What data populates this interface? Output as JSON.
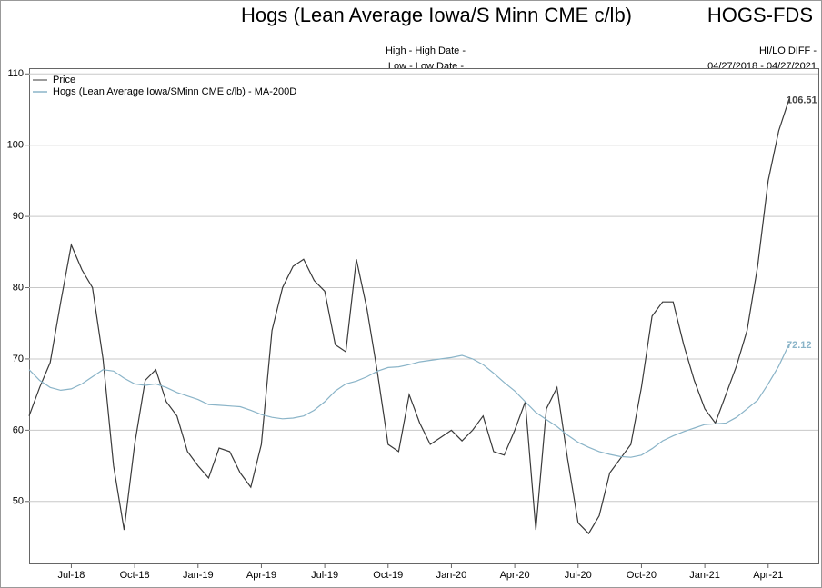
{
  "chart_data": {
    "type": "line",
    "title": "Hogs (Lean Average Iowa/S Minn CME c/lb)",
    "ticker": "HOGS-FDS",
    "high_text": "High - High Date -",
    "low_text": "Low - Low Date -",
    "hilo_text": "HI/LO DIFF -",
    "date_range": "04/27/2018 - 04/27/2021",
    "legend": "upper left",
    "grid": true,
    "ylim": [
      41.3,
      110.8
    ],
    "yticks": [
      50,
      60,
      70,
      80,
      90,
      100,
      110
    ],
    "categories": [
      null,
      null,
      null,
      null,
      "Jul-18",
      null,
      null,
      null,
      null,
      null,
      "Oct-18",
      null,
      null,
      null,
      null,
      null,
      "Jan-19",
      null,
      null,
      null,
      null,
      null,
      "Apr-19",
      null,
      null,
      null,
      null,
      null,
      "Jul-19",
      null,
      null,
      null,
      null,
      null,
      "Oct-19",
      null,
      null,
      null,
      null,
      null,
      "Jan-20",
      null,
      null,
      null,
      null,
      null,
      "Apr-20",
      null,
      null,
      null,
      null,
      null,
      "Jul-20",
      null,
      null,
      null,
      null,
      null,
      "Oct-20",
      null,
      null,
      null,
      null,
      null,
      "Jan-21",
      null,
      null,
      null,
      null,
      null,
      "Apr-21",
      null,
      null
    ],
    "series": [
      {
        "name": "Price",
        "color": "#3a3a3a",
        "values": [
          62,
          66,
          69.5,
          78,
          86,
          82.5,
          80,
          70,
          55,
          46,
          58,
          67,
          68.5,
          64,
          62,
          57,
          55,
          53.3,
          57.5,
          57,
          54,
          52,
          58,
          74,
          80,
          83,
          84,
          81,
          79.5,
          72,
          71,
          84,
          77,
          68,
          58,
          57,
          65,
          61,
          58,
          59,
          60,
          58.5,
          60,
          62,
          57,
          56.5,
          60,
          64,
          46,
          63,
          66,
          56,
          47,
          45.5,
          48,
          54,
          56,
          58,
          66,
          76,
          78,
          78,
          72,
          67,
          63,
          61,
          65,
          69,
          74,
          83,
          95,
          102,
          106.51
        ]
      },
      {
        "name": "Hogs (Lean Average Iowa/SMinn CME c/lb) - MA-200D",
        "color": "#8ab4c8",
        "values": [
          68.5,
          67,
          66,
          65.6,
          65.8,
          66.5,
          67.5,
          68.5,
          68.3,
          67.3,
          66.5,
          66.3,
          66.5,
          66,
          65.3,
          64.8,
          64.3,
          63.6,
          63.5,
          63.4,
          63.3,
          62.8,
          62.2,
          61.8,
          61.6,
          61.7,
          62,
          62.8,
          64,
          65.5,
          66.5,
          66.9,
          67.5,
          68.3,
          68.8,
          68.9,
          69.2,
          69.6,
          69.8,
          70,
          70.2,
          70.5,
          70,
          69.2,
          68,
          66.7,
          65.5,
          64,
          62.5,
          61.5,
          60.5,
          59.3,
          58.3,
          57.6,
          57,
          56.6,
          56.3,
          56.2,
          56.5,
          57.4,
          58.5,
          59.2,
          59.8,
          60.3,
          60.8,
          60.9,
          61,
          61.8,
          63,
          64.2,
          66.5,
          69,
          72.12
        ]
      }
    ]
  }
}
